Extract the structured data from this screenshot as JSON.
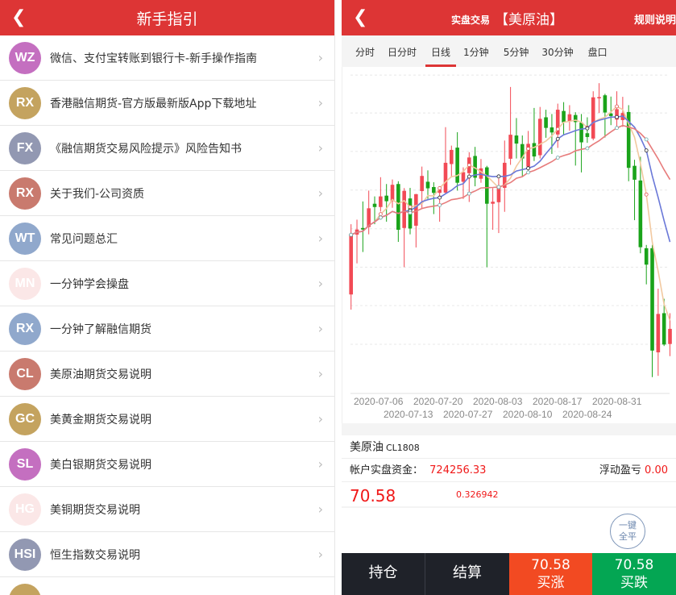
{
  "left": {
    "header": {
      "title": "新手指引"
    },
    "items": [
      {
        "badge": "WZ",
        "color": "#c46fc0",
        "label": "微信、支付宝转账到银行卡-新手操作指南"
      },
      {
        "badge": "RX",
        "color": "#c4a35f",
        "label": "香港融信期货-官方版最新版App下载地址"
      },
      {
        "badge": "FX",
        "color": "#9298b2",
        "label": "《融信期货交易风险提示》风险告知书"
      },
      {
        "badge": "RX",
        "color": "#c97a6e",
        "label": "关于我们-公司资质"
      },
      {
        "badge": "WT",
        "color": "#90a8cc",
        "label": "常见问题总汇"
      },
      {
        "badge": "MN",
        "color": "#fbe7e7",
        "label": "一分钟学会操盘"
      },
      {
        "badge": "RX",
        "color": "#90a8cc",
        "label": "一分钟了解融信期货"
      },
      {
        "badge": "CL",
        "color": "#c97a6e",
        "label": "美原油期货交易说明"
      },
      {
        "badge": "GC",
        "color": "#c4a35f",
        "label": "美黄金期货交易说明"
      },
      {
        "badge": "SL",
        "color": "#c46fc0",
        "label": "美白银期货交易说明"
      },
      {
        "badge": "HG",
        "color": "#fbe7e7",
        "label": "美铜期货交易说明"
      },
      {
        "badge": "HSI",
        "color": "#9298b2",
        "label": "恒生指数交易说明"
      },
      {
        "badge": "",
        "color": "#c4a35f",
        "label": ""
      }
    ]
  },
  "right": {
    "header": {
      "subtitle": "实盘交易",
      "name": "【美原油】",
      "rules": "规则说明"
    },
    "tabs": [
      "分时",
      "日分时",
      "日线",
      "1分钟",
      "5分钟",
      "30分钟",
      "盘口"
    ],
    "active_tab": "日线",
    "product": {
      "name": "美原油",
      "code": "CL1808"
    },
    "account": {
      "label": "帐户实盘资金：",
      "value": "724256.33",
      "pnl_label": "浮动盈亏",
      "pnl_value": "0.00"
    },
    "quote": {
      "price": "70.58",
      "change": "0.326942"
    },
    "close_all": {
      "line1": "一键",
      "line2": "全平"
    },
    "bottom": {
      "positions": "持仓",
      "settle": "结算",
      "buy_up_price": "70.58",
      "buy_up": "买涨",
      "buy_down_price": "70.58",
      "buy_down": "买跌"
    }
  },
  "colors": {
    "header": "#dd3535",
    "up": "#f24a55",
    "down": "#1aa31a",
    "ma5": "#f2c9a0",
    "ma10": "#6a78d8",
    "ma20": "#e77c7c"
  },
  "chart_data": {
    "type": "candlestick",
    "x_tick_labels": [
      "2020-07-06",
      "2020-07-13",
      "2020-07-20",
      "2020-07-27",
      "2020-08-03",
      "2020-08-10",
      "2020-08-17",
      "2020-08-24",
      "2020-08-31"
    ],
    "ohlc_format": [
      "open",
      "close",
      "low",
      "high"
    ],
    "candles": [
      [
        38.2,
        61.8,
        32.2,
        66
      ],
      [
        61.9,
        63.9,
        50.5,
        67.8
      ],
      [
        64.5,
        63.9,
        55,
        75
      ],
      [
        64.9,
        72.3,
        62,
        79.3
      ],
      [
        74.1,
        72.8,
        66,
        77
      ],
      [
        72.8,
        77,
        71,
        84.6
      ],
      [
        77.3,
        75.1,
        67,
        81.9
      ],
      [
        75.1,
        81.6,
        72.5,
        83.7
      ],
      [
        81.9,
        63.8,
        59,
        83
      ],
      [
        64.5,
        79.2,
        49,
        80.3
      ],
      [
        76.2,
        64.3,
        62,
        80.4
      ],
      [
        65.4,
        77.9,
        56.8,
        78
      ],
      [
        79.1,
        85.1,
        72,
        88.8
      ],
      [
        82.8,
        80.2,
        76,
        87.3
      ],
      [
        80.7,
        78.4,
        70,
        82.6
      ],
      [
        78.4,
        79.7,
        67,
        81
      ],
      [
        78.5,
        90.3,
        78,
        104.4
      ],
      [
        89.8,
        95.4,
        84.5,
        97.1
      ],
      [
        96.3,
        82.4,
        79.3,
        102.4
      ],
      [
        82.8,
        86.6,
        76,
        88.5
      ],
      [
        86.2,
        92.4,
        74.8,
        94.5
      ],
      [
        93,
        84.4,
        81,
        96.6
      ],
      [
        84,
        88.1,
        82.4,
        91.8
      ],
      [
        88.5,
        74.1,
        49,
        89.1
      ],
      [
        74.1,
        74.9,
        63.8,
        80.3
      ],
      [
        74.7,
        80.5,
        62.5,
        84.1
      ],
      [
        80.4,
        90.3,
        70.9,
        99.1
      ],
      [
        91.9,
        101.4,
        89.5,
        120.3
      ],
      [
        101.1,
        97.9,
        92,
        108
      ],
      [
        97.7,
        92,
        84.7,
        101.1
      ],
      [
        88.8,
        97.8,
        86.5,
        102.9
      ],
      [
        98.1,
        92.8,
        91,
        112
      ],
      [
        93.3,
        107.7,
        92,
        112.4
      ],
      [
        108.3,
        104.1,
        100.2,
        111.3
      ],
      [
        104.3,
        102.3,
        93.8,
        109.6
      ],
      [
        101.5,
        111.3,
        96.2,
        113.7
      ],
      [
        110.8,
        106.3,
        101.4,
        114.3
      ],
      [
        106.7,
        109.5,
        103,
        113.1
      ],
      [
        109.2,
        106.4,
        89.2,
        110.3
      ],
      [
        106.2,
        98.4,
        86.5,
        109.6
      ],
      [
        102,
        100.5,
        98.2,
        108.3
      ],
      [
        99.9,
        116.2,
        99.2,
        118.6
      ],
      [
        115.8,
        116.3,
        110,
        121.8
      ],
      [
        117,
        110.2,
        100.3,
        117.6
      ],
      [
        109.8,
        108.8,
        105.2,
        116.5
      ],
      [
        107.4,
        111.5,
        103.8,
        118.6
      ],
      [
        107.2,
        110,
        104.5,
        116.4
      ],
      [
        110.4,
        88.3,
        83,
        113.1
      ],
      [
        89.1,
        83.6,
        67.6,
        91.5
      ],
      [
        83.3,
        56.9,
        54.5,
        92.7
      ],
      [
        56.5,
        50,
        42.2,
        57.8
      ],
      [
        56.5,
        16,
        5.5,
        57.8
      ],
      [
        15.3,
        30.5,
        6,
        40.5
      ],
      [
        30.8,
        18.4,
        17.8,
        36.5
      ],
      [
        18.6,
        24.6,
        13.8,
        30.8
      ]
    ],
    "moving_averages": [
      5,
      10,
      20
    ],
    "ylim": [
      0,
      126
    ],
    "grid": true,
    "up_color": "red",
    "down_color": "green"
  }
}
